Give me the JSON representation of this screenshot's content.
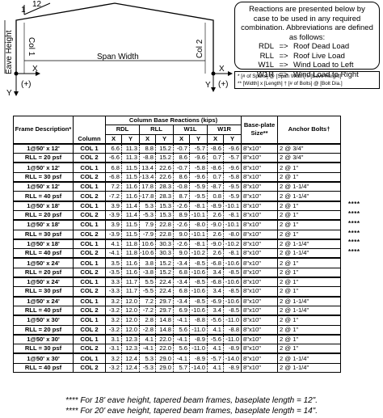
{
  "diagram": {
    "roof_slope": "1",
    "roof_run": "12",
    "eave_label": "Eave Height",
    "col1_label": "Col 1",
    "col2_label": "Col 2",
    "span_label": "Span Width",
    "x_label": "X",
    "y_label": "Y",
    "plus_label": "(+)"
  },
  "legend": {
    "intro": "Reactions are presented below by case to be used in any required combination. Abbreviations are defined as follows:",
    "arrow": "=>",
    "items": [
      {
        "code": "RDL",
        "desc": "Roof Dead Load"
      },
      {
        "code": "RLL",
        "desc": "Roof Live Load"
      },
      {
        "code": "W1L",
        "desc": "Wind Load to Left"
      },
      {
        "code": "W1R",
        "desc": "Wind Load to Right"
      }
    ]
  },
  "notes": {
    "line1": "* [# of Spans] @ [Span Width] x [Eave Height]",
    "line2": "** [Width] x [Length]     † [# of Bolts] @ [Bolt Dia.]"
  },
  "table": {
    "h_frame": "Frame Description*",
    "h_column": "Column",
    "h_reactions": "Column Base Reactions (kips)",
    "h_rdl": "RDL",
    "h_rll": "RLL",
    "h_w1l": "W1L",
    "h_w1r": "W1R",
    "h_x": "X",
    "h_y": "Y",
    "h_plate": "Base-plate Size**",
    "h_bolts": "Anchor Bolts†",
    "groups": [
      {
        "d1": "1@50' x 12'",
        "d2": "RLL = 20 psf",
        "rows": [
          {
            "col": "COL 1",
            "v": [
              "6.6",
              "11.3",
              "8.8",
              "15.2",
              "-0.7",
              "-5.7",
              "-8.6",
              "-9.6"
            ],
            "plate": "8\"x10\"",
            "bolts": "2 @ 3/4\""
          },
          {
            "col": "COL 2",
            "v": [
              "-6.6",
              "11.3",
              "-8.8",
              "15.2",
              "8.6",
              "-9.6",
              "0.7",
              "-5.7"
            ],
            "plate": "8\"x10\"",
            "bolts": "2 @ 3/4\""
          }
        ]
      },
      {
        "d1": "1@50' x 12'",
        "d2": "RLL = 30 psf",
        "rows": [
          {
            "col": "COL 1",
            "v": [
              "6.8",
              "11.5",
              "13.4",
              "22.6",
              "-0.7",
              "-5.8",
              "-8.6",
              "-9.6"
            ],
            "plate": "8\"x10\"",
            "bolts": "2 @ 1\""
          },
          {
            "col": "COL 2",
            "v": [
              "-6.8",
              "11.5",
              "-13.4",
              "22.6",
              "8.6",
              "-9.6",
              "0.7",
              "-5.8"
            ],
            "plate": "8\"x10\"",
            "bolts": "2 @ 1\""
          }
        ]
      },
      {
        "d1": "1@50' x 12'",
        "d2": "RLL = 40 psf",
        "rows": [
          {
            "col": "COL 1",
            "v": [
              "7.2",
              "11.6",
              "17.8",
              "28.3",
              "-0.8",
              "-5.9",
              "-8.7",
              "-9.5"
            ],
            "plate": "8\"x10\"",
            "bolts": "2 @ 1-1/4\""
          },
          {
            "col": "COL 2",
            "v": [
              "-7.2",
              "11.6",
              "-17.8",
              "28.3",
              "8.7",
              "-9.5",
              "0.8",
              "-5.9"
            ],
            "plate": "8\"x10\"",
            "bolts": "2 @ 1-1/4\""
          }
        ]
      },
      {
        "d1": "1@50' x 18'",
        "d2": "RLL = 20 psf",
        "stars": "****",
        "rows": [
          {
            "col": "COL 1",
            "v": [
              "3.9",
              "11.4",
              "5.3",
              "15.3",
              "-2.6",
              "-8.1",
              "-8.9",
              "-10.1"
            ],
            "plate": "8\"x10\"",
            "bolts": "2 @ 1\""
          },
          {
            "col": "COL 2",
            "v": [
              "-3.9",
              "11.4",
              "-5.3",
              "15.3",
              "8.9",
              "-10.1",
              "2.6",
              "-8.1"
            ],
            "plate": "8\"x10\"",
            "bolts": "2 @ 1\""
          }
        ]
      },
      {
        "d1": "1@50' x 18'",
        "d2": "RLL = 30 psf",
        "stars": "****",
        "rows": [
          {
            "col": "COL 1",
            "v": [
              "3.9",
              "11.5",
              "7.9",
              "22.8",
              "-2.6",
              "-8.0",
              "-9.0",
              "-10.1"
            ],
            "plate": "8\"x10\"",
            "bolts": "2 @ 1\""
          },
          {
            "col": "COL 2",
            "v": [
              "-3.9",
              "11.5",
              "-7.9",
              "22.8",
              "9.0",
              "-10.1",
              "2.6",
              "-8.0"
            ],
            "plate": "8\"x10\"",
            "bolts": "2 @ 1\""
          }
        ]
      },
      {
        "d1": "1@50' x 18'",
        "d2": "RLL = 40 psf",
        "stars": "****",
        "rows": [
          {
            "col": "COL 1",
            "v": [
              "4.1",
              "11.8",
              "10.6",
              "30.3",
              "-2.6",
              "-8.1",
              "-9.0",
              "-10.2"
            ],
            "plate": "8\"x10\"",
            "bolts": "2 @ 1-1/4\""
          },
          {
            "col": "COL 2",
            "v": [
              "-4.1",
              "11.8",
              "-10.6",
              "30.3",
              "9.0",
              "-10.2",
              "2.6",
              "-8.1"
            ],
            "plate": "8\"x10\"",
            "bolts": "2 @ 1-1/4\""
          }
        ]
      },
      {
        "d1": "1@50' x 24'",
        "d2": "RLL = 20 psf",
        "rows": [
          {
            "col": "COL 1",
            "v": [
              "3.5",
              "11.6",
              "3.8",
              "15.2",
              "-3.4",
              "-8.5",
              "-6.8",
              "-10.6"
            ],
            "plate": "8\"x10\"",
            "bolts": "2 @ 1\""
          },
          {
            "col": "COL 2",
            "v": [
              "-3.5",
              "11.6",
              "-3.8",
              "15.2",
              "6.8",
              "-10.6",
              "3.4",
              "-8.5"
            ],
            "plate": "8\"x10\"",
            "bolts": "2 @ 1\""
          }
        ]
      },
      {
        "d1": "1@50' x 24'",
        "d2": "RLL = 30 psf",
        "rows": [
          {
            "col": "COL 1",
            "v": [
              "3.3",
              "11.7",
              "5.5",
              "22.4",
              "-3.4",
              "-8.5",
              "-6.8",
              "-10.6"
            ],
            "plate": "8\"x10\"",
            "bolts": "2 @ 1\""
          },
          {
            "col": "COL 2",
            "v": [
              "-3.3",
              "11.7",
              "-5.5",
              "22.4",
              "6.8",
              "-10.6",
              "3.4",
              "-8.5"
            ],
            "plate": "8\"x10\"",
            "bolts": "2 @ 1\""
          }
        ]
      },
      {
        "d1": "1@50' x 24'",
        "d2": "RLL = 40 psf",
        "rows": [
          {
            "col": "COL 1",
            "v": [
              "3.2",
              "12.0",
              "7.2",
              "29.7",
              "-3.4",
              "-8.5",
              "-6.9",
              "-10.6"
            ],
            "plate": "8\"x10\"",
            "bolts": "2 @ 1-1/4\""
          },
          {
            "col": "COL 2",
            "v": [
              "-3.2",
              "12.0",
              "-7.2",
              "29.7",
              "6.9",
              "-10.6",
              "3.4",
              "-8.5"
            ],
            "plate": "8\"x10\"",
            "bolts": "2 @ 1-1/4\""
          }
        ]
      },
      {
        "d1": "1@50' x 30'",
        "d2": "RLL = 20 psf",
        "rows": [
          {
            "col": "COL 1",
            "v": [
              "3.2",
              "12.0",
              "2.8",
              "14.8",
              "-4.1",
              "-8.8",
              "-5.6",
              "-11.0"
            ],
            "plate": "8\"x10\"",
            "bolts": "2 @ 1\""
          },
          {
            "col": "COL 2",
            "v": [
              "-3.2",
              "12.0",
              "-2.8",
              "14.8",
              "5.6",
              "-11.0",
              "4.1",
              "-8.8"
            ],
            "plate": "8\"x10\"",
            "bolts": "2 @ 1\""
          }
        ]
      },
      {
        "d1": "1@50' x 30'",
        "d2": "RLL = 30 psf",
        "rows": [
          {
            "col": "COL 1",
            "v": [
              "3.1",
              "12.3",
              "4.1",
              "22.0",
              "-4.1",
              "-8.9",
              "-5.6",
              "-11.0"
            ],
            "plate": "8\"x10\"",
            "bolts": "2 @ 1\""
          },
          {
            "col": "COL 2",
            "v": [
              "-3.1",
              "12.3",
              "-4.1",
              "22.0",
              "5.6",
              "-11.0",
              "4.1",
              "-8.9"
            ],
            "plate": "8\"x10\"",
            "bolts": "2 @ 1\""
          }
        ]
      },
      {
        "d1": "1@50' x 30'",
        "d2": "RLL = 40 psf",
        "rows": [
          {
            "col": "COL 1",
            "v": [
              "3.2",
              "12.4",
              "5.3",
              "29.0",
              "-4.1",
              "-8.9",
              "-5.7",
              "-14.0"
            ],
            "plate": "8\"x10\"",
            "bolts": "2 @ 1-1/4\""
          },
          {
            "col": "COL 2",
            "v": [
              "-3.2",
              "12.4",
              "-5.3",
              "29.0",
              "5.7",
              "-14.0",
              "4.1",
              "-8.9"
            ],
            "plate": "8\"x10\"",
            "bolts": "2 @ 1-1/4\""
          }
        ]
      }
    ]
  },
  "footnotes": {
    "f1": "**** For 18' eave height, tapered beam frames, baseplate length = 12\".",
    "f2": "**** For 20' eave height, tapered beam frames, baseplate length = 14\"."
  }
}
